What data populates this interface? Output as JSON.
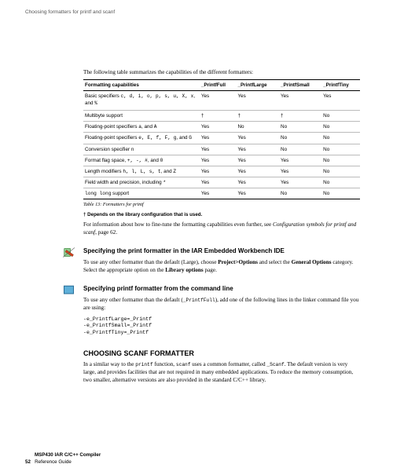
{
  "header_label": "Choosing formatters for printf and scanf",
  "intro": "The following table summarizes the capabilities of the different formatters:",
  "table": {
    "columns": [
      "Formatting capabilities",
      "_PrintfFull",
      "_PrintfLarge",
      "_PrintfSmall",
      "_PrintfTiny"
    ],
    "rows": [
      {
        "cap_pre": "Basic specifiers ",
        "cap_mono": "c, d, i, o, p, s, u, X, x",
        "cap_post": ", and ",
        "cap_mono2": "%",
        "v": [
          "Yes",
          "Yes",
          "Yes",
          "Yes"
        ],
        "multiline": true
      },
      {
        "cap": "Multibyte support",
        "v": [
          "†",
          "†",
          "†",
          "No"
        ]
      },
      {
        "cap_pre": "Floating-point specifiers ",
        "cap_mono": "a",
        "cap_post": ", and ",
        "cap_mono2": "A",
        "v": [
          "Yes",
          "No",
          "No",
          "No"
        ]
      },
      {
        "cap_pre": "Floating-point specifiers ",
        "cap_mono": "e, E, f, F, g",
        "cap_post": ", and ",
        "cap_mono2": "G",
        "v": [
          "Yes",
          "Yes",
          "No",
          "No"
        ],
        "multiline": true
      },
      {
        "cap_pre": "Conversion specifier ",
        "cap_mono": "n",
        "v": [
          "Yes",
          "Yes",
          "No",
          "No"
        ]
      },
      {
        "cap_pre": "Format flag space, ",
        "cap_mono": "+, -, #",
        "cap_post": ", and ",
        "cap_mono2": "0",
        "v": [
          "Yes",
          "Yes",
          "Yes",
          "No"
        ]
      },
      {
        "cap_pre": "Length modifiers ",
        "cap_mono": "h, l, L, s, t",
        "cap_post": ", and ",
        "cap_mono2": "Z",
        "v": [
          "Yes",
          "Yes",
          "Yes",
          "No"
        ]
      },
      {
        "cap_pre": "Field width and precision, including ",
        "cap_mono": "*",
        "v": [
          "Yes",
          "Yes",
          "Yes",
          "No"
        ]
      },
      {
        "cap_mono_full": "long long",
        "cap_post": " support",
        "v": [
          "Yes",
          "Yes",
          "No",
          "No"
        ]
      }
    ],
    "caption": "Table 13: Formatters for printf"
  },
  "dagger": "† Depends on the library configuration that is used.",
  "para_followup": {
    "a": "For information about how to fine-tune the formatting capabilities even further, see ",
    "b": "Configuration symbols for printf and scanf",
    "c": ", page 62."
  },
  "sec1": {
    "title": "Specifying the print formatter in the IAR Embedded Workbench IDE",
    "body_a": "To use any other formatter than the default (Large), choose ",
    "body_b": "Project>Options",
    "body_c": " and select the ",
    "body_d": "General Options",
    "body_e": " category. Select the appropriate option on the ",
    "body_f": "Library options",
    "body_g": " page."
  },
  "sec2": {
    "title": "Specifying printf formatter from the command line",
    "body_a": "To use any other formatter than the default (",
    "body_b": "_PrintfFull",
    "body_c": "), add one of the following lines in the linker command file you are using:",
    "code": [
      "-e_PrintfLarge=_Printf",
      "-e_PrintfSmall=_Printf",
      "-e_PrintfTiny=_Printf"
    ]
  },
  "sec3": {
    "title": "CHOOSING SCANF FORMATTER",
    "body_a": "In a similar way to the ",
    "body_b": "printf",
    "body_c": " function, ",
    "body_d": "scanf",
    "body_e": " uses a common formatter, called ",
    "body_f": "_Scanf",
    "body_g": ". The default version is very large, and provides facilities that are not required in many embedded applications. To reduce the memory consumption, two smaller, alternative versions are also provided in the standard C/C++ library."
  },
  "footer": {
    "line1": "MSP430 IAR C/C++ Compiler",
    "line2": "Reference Guide",
    "pagenum": "52"
  },
  "icons": {
    "ide_bg": "#8fce8f",
    "ide_fg": "#d1441e",
    "cli_border": "#2b6f99",
    "cli_fill": "#5fb0d9"
  }
}
